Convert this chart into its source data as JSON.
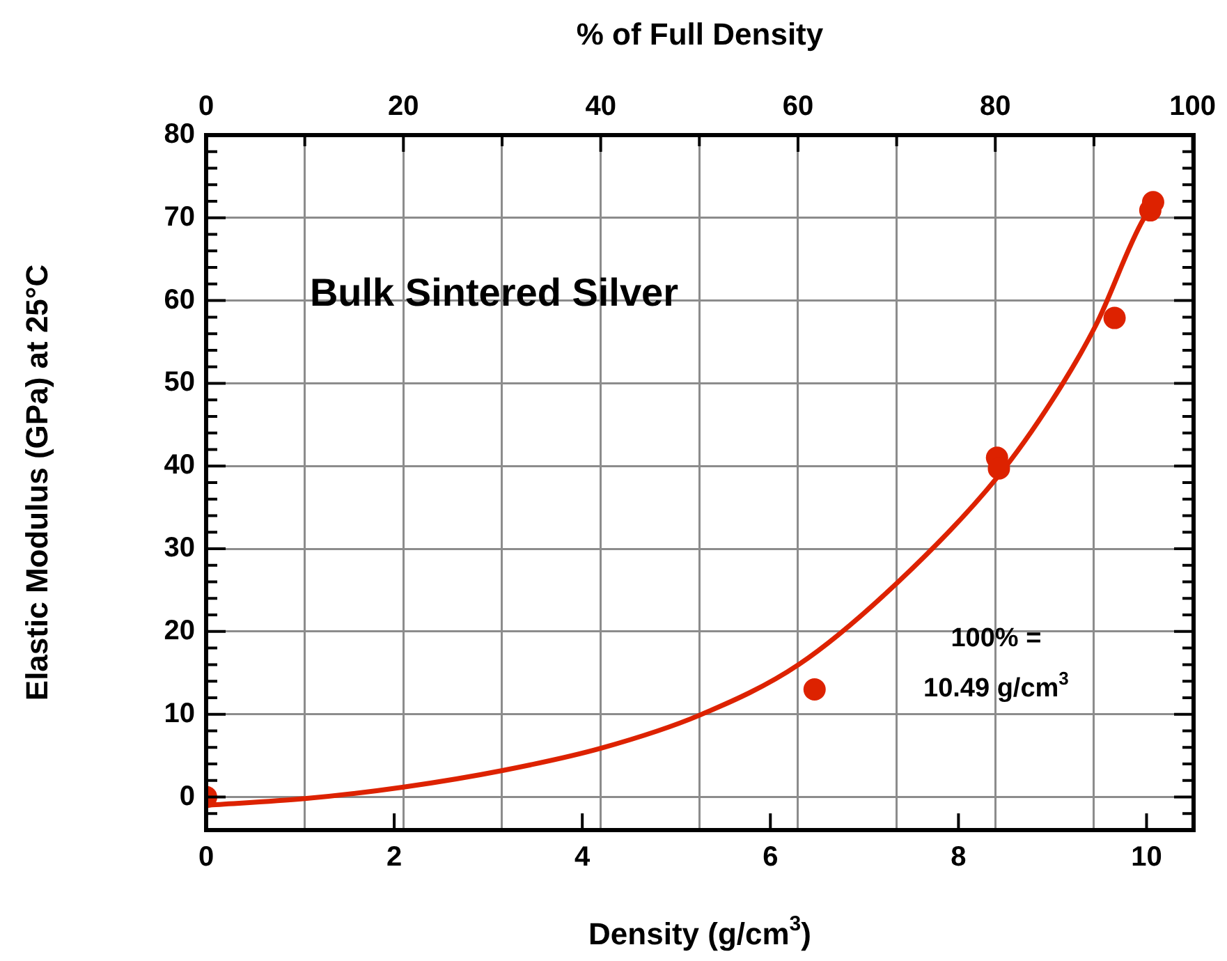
{
  "chart_data": {
    "type": "scatter",
    "xlabel": "Density (g/cm$^{3}$)",
    "x2label": "% of Full Density",
    "ylabel": "Elastic Modulus (GPa) at 25°C",
    "annotations": [
      "Bulk Sintered Silver",
      "100% =\n10.49 g/cm$^{3}$"
    ],
    "xlim": [
      0,
      10.5
    ],
    "xticks": [
      0,
      2,
      4,
      6,
      8,
      10
    ],
    "x2lim": [
      0,
      100.1
    ],
    "x2ticks": [
      0,
      {
        "value": 10,
        "label": null
      },
      20,
      {
        "value": 30,
        "label": null
      },
      40,
      {
        "value": 50,
        "label": null
      },
      60,
      {
        "value": 70,
        "label": null
      },
      80,
      {
        "value": 90,
        "label": null
      },
      100
    ],
    "ylim": [
      -4,
      80
    ],
    "yticks": [
      {
        "value": -2,
        "label": null
      },
      0,
      {
        "value": 2,
        "label": null
      },
      {
        "value": 4,
        "label": null
      },
      {
        "value": 6,
        "label": null
      },
      {
        "value": 8,
        "label": null
      },
      10,
      {
        "value": 12,
        "label": null
      },
      {
        "value": 14,
        "label": null
      },
      {
        "value": 16,
        "label": null
      },
      {
        "value": 18,
        "label": null
      },
      20,
      {
        "value": 22,
        "label": null
      },
      {
        "value": 24,
        "label": null
      },
      {
        "value": 26,
        "label": null
      },
      {
        "value": 28,
        "label": null
      },
      30,
      {
        "value": 32,
        "label": null
      },
      {
        "value": 34,
        "label": null
      },
      {
        "value": 36,
        "label": null
      },
      {
        "value": 38,
        "label": null
      },
      40,
      {
        "value": 42,
        "label": null
      },
      {
        "value": 44,
        "label": null
      },
      {
        "value": 46,
        "label": null
      },
      {
        "value": 48,
        "label": null
      },
      50,
      {
        "value": 52,
        "label": null
      },
      {
        "value": 54,
        "label": null
      },
      {
        "value": 56,
        "label": null
      },
      {
        "value": 58,
        "label": null
      },
      60,
      {
        "value": 62,
        "label": null
      },
      {
        "value": 64,
        "label": null
      },
      {
        "value": 66,
        "label": null
      },
      {
        "value": 68,
        "label": null
      },
      70,
      {
        "value": 72,
        "label": null
      },
      {
        "value": 74,
        "label": null
      },
      {
        "value": 76,
        "label": null
      },
      {
        "value": 78,
        "label": null
      },
      80
    ],
    "grid": true,
    "marker": "circle",
    "series": [
      {
        "type": "line",
        "marker": "none",
        "color": "#dd2200",
        "x": [
          0,
          1.05,
          2.1,
          3.15,
          4.2,
          5.25,
          6.3,
          7.35,
          8.41,
          9.0,
          9.46,
          9.97,
          10.03
        ],
        "values": [
          -1.0,
          -0.2,
          1.2,
          3.2,
          5.9,
          9.9,
          16,
          25.9,
          38.6,
          48,
          57,
          69.9,
          70.7
        ]
      },
      {
        "type": "scatter",
        "color": "#dd2200",
        "x": [
          0,
          6.47,
          8.41,
          8.43,
          9.66,
          10.04,
          10.07
        ],
        "values": [
          0,
          13,
          41,
          39.7,
          57.9,
          70.9,
          71.9
        ]
      }
    ]
  }
}
